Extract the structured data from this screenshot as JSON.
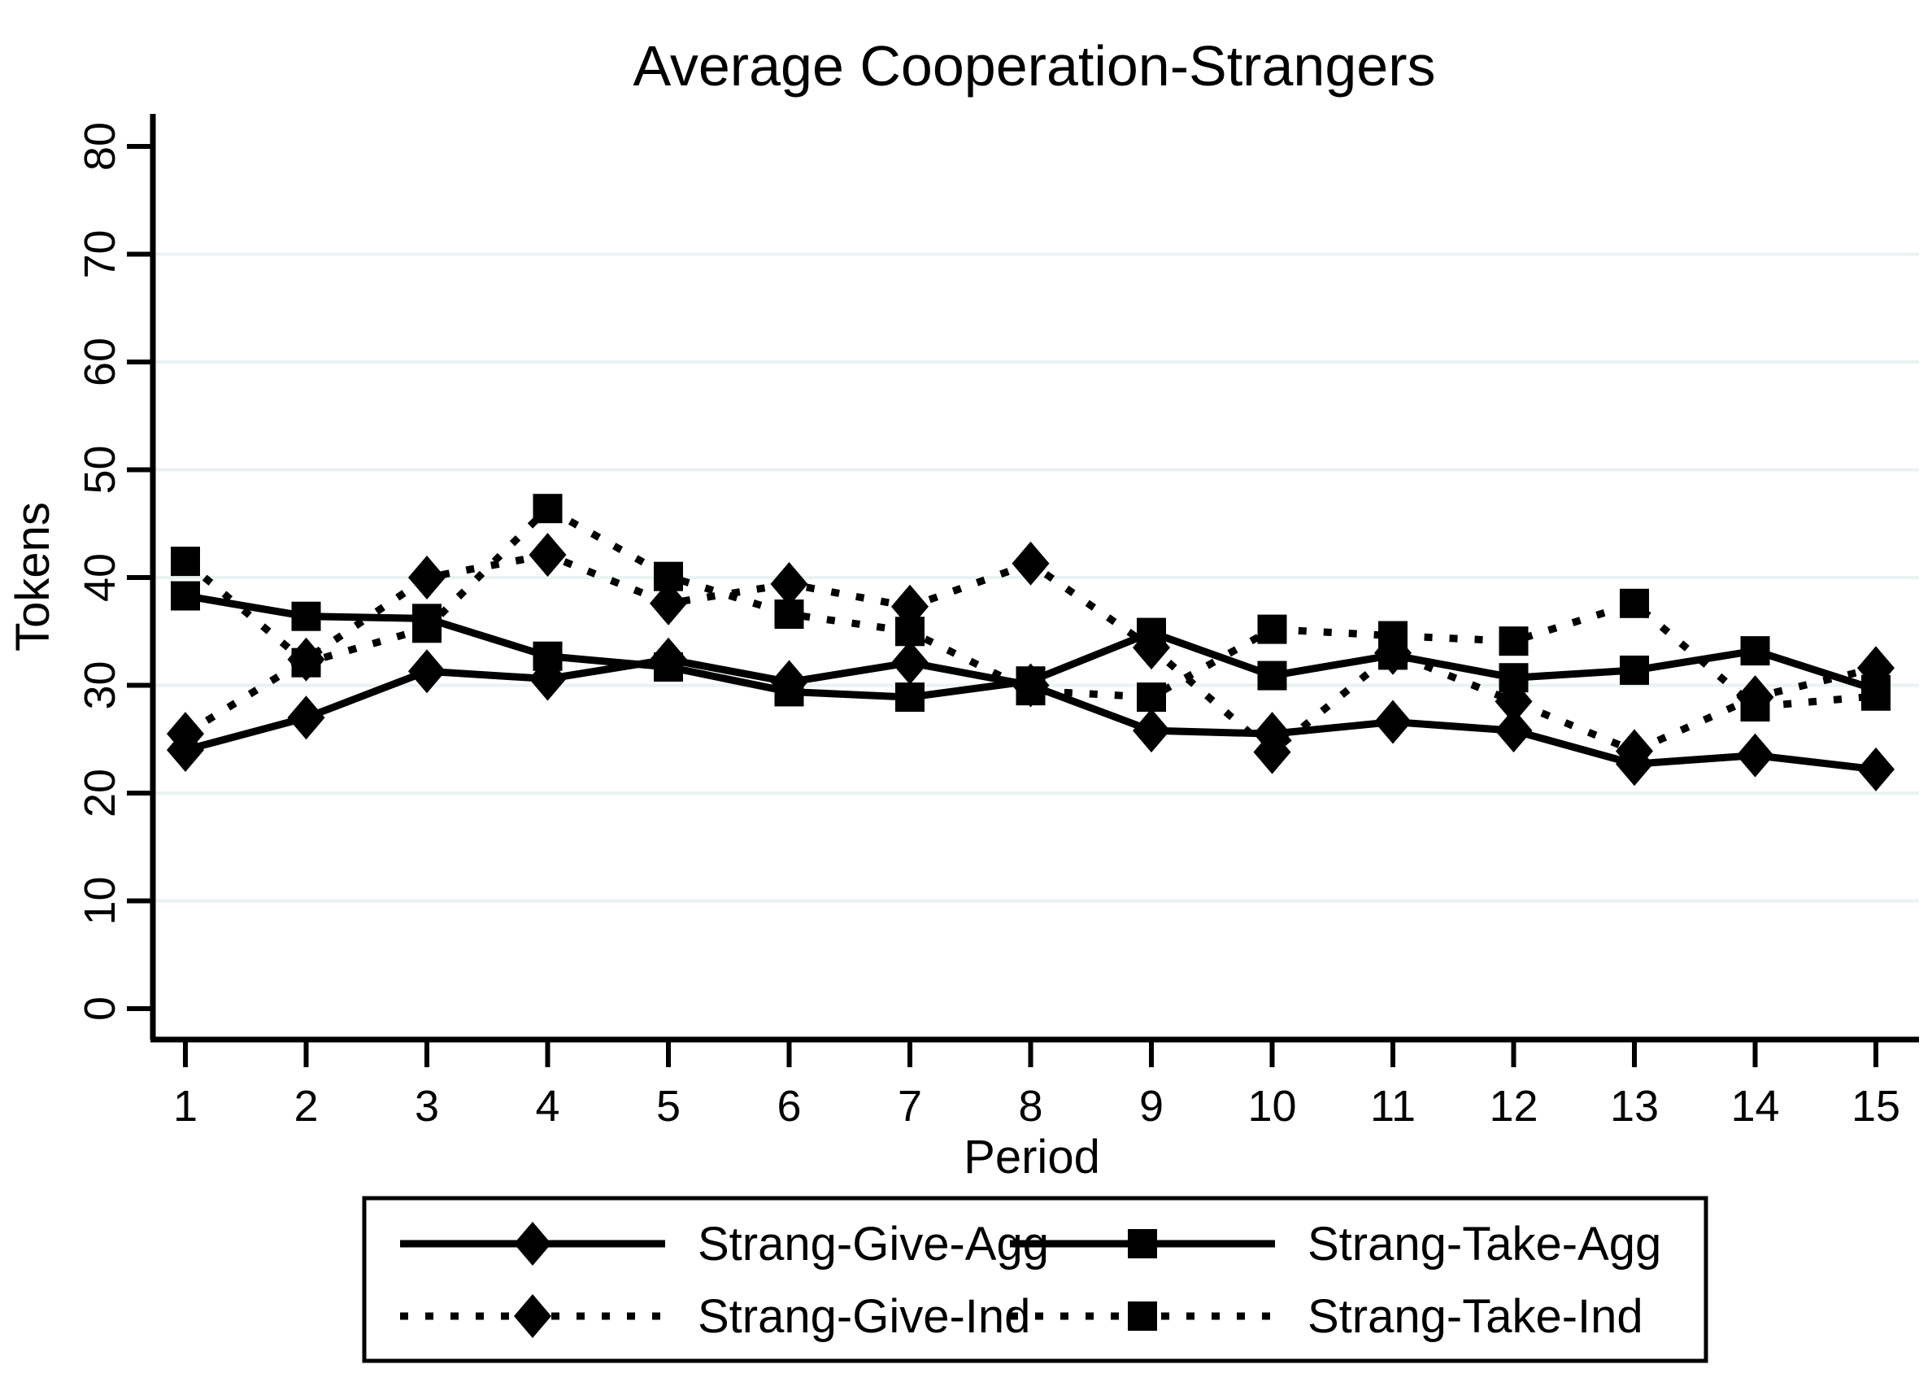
{
  "chart_data": {
    "type": "line",
    "title": "Average Cooperation-Strangers",
    "xlabel": "Period",
    "ylabel": "Tokens",
    "x": [
      1,
      2,
      3,
      4,
      5,
      6,
      7,
      8,
      9,
      10,
      11,
      12,
      13,
      14,
      15
    ],
    "xticks": [
      1,
      2,
      3,
      4,
      5,
      6,
      7,
      8,
      9,
      10,
      11,
      12,
      13,
      14,
      15
    ],
    "yticks": [
      0,
      10,
      20,
      30,
      40,
      50,
      60,
      70,
      80
    ],
    "ylim": [
      0,
      80
    ],
    "grid": "horizontal-light",
    "grid_color": "#eaf2f3",
    "axis_color": "#000000",
    "series_color": "#000000",
    "legend_position": "bottom-box",
    "series": [
      {
        "name": "Strang-Give-Agg",
        "marker": "diamond",
        "line": "solid",
        "values": [
          24.0,
          27.0,
          31.3,
          30.6,
          32.4,
          30.3,
          32.1,
          30.0,
          25.8,
          25.5,
          26.6,
          25.8,
          22.7,
          23.5,
          22.2
        ]
      },
      {
        "name": "Strang-Take-Agg",
        "marker": "square",
        "line": "solid",
        "values": [
          38.3,
          36.4,
          36.2,
          32.7,
          31.7,
          29.4,
          28.9,
          30.4,
          34.9,
          30.9,
          32.8,
          30.7,
          31.4,
          33.2,
          29.6
        ]
      },
      {
        "name": "Strang-Give-Ind",
        "marker": "diamond",
        "line": "dotted",
        "values": [
          25.5,
          32.4,
          40.0,
          42.1,
          37.6,
          39.4,
          37.3,
          41.3,
          33.5,
          23.8,
          33.0,
          28.5,
          23.9,
          28.9,
          31.6
        ]
      },
      {
        "name": "Strang-Take-Ind",
        "marker": "square",
        "line": "dotted",
        "values": [
          41.5,
          32.1,
          35.3,
          46.4,
          40.1,
          36.6,
          35.0,
          29.5,
          28.9,
          35.2,
          34.6,
          34.1,
          37.6,
          28.0,
          29.0
        ]
      }
    ]
  },
  "legend": {
    "entries": [
      {
        "label": "Strang-Give-Agg"
      },
      {
        "label": "Strang-Take-Agg"
      },
      {
        "label": "Strang-Give-Ind"
      },
      {
        "label": "Strang-Take-Ind"
      }
    ]
  }
}
